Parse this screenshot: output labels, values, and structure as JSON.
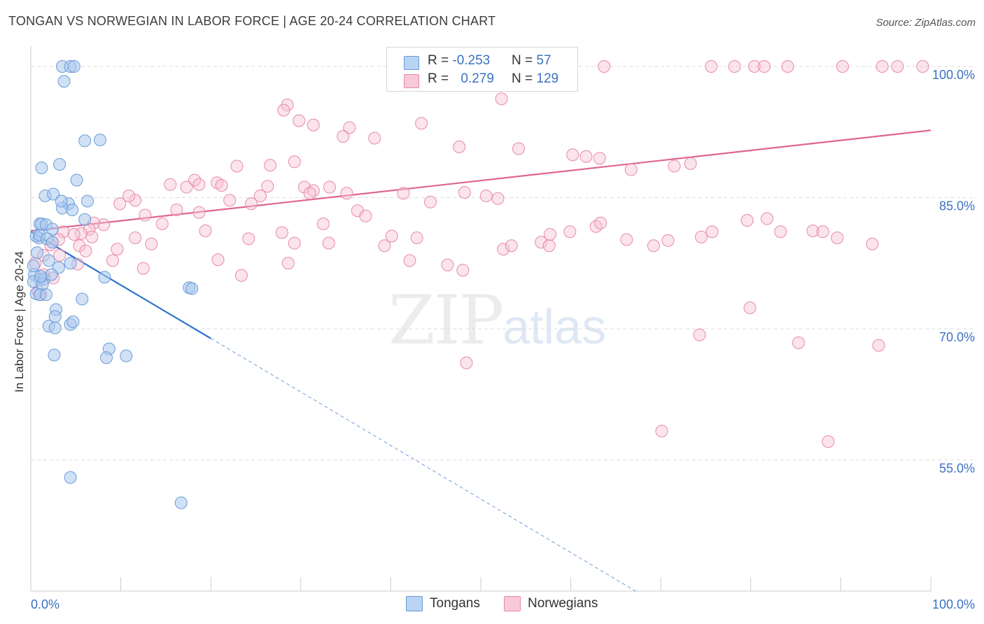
{
  "header": {
    "title": "TONGAN VS NORWEGIAN IN LABOR FORCE | AGE 20-24 CORRELATION CHART",
    "source": "Source: ZipAtlas.com"
  },
  "legend_box": {
    "rows": [
      {
        "r_label": "R = ",
        "r_value": "-0.253",
        "n_label": "N = ",
        "n_value": "57"
      },
      {
        "r_label": "R = ",
        "r_value": "0.279",
        "n_label": "N = ",
        "n_value": "129"
      }
    ]
  },
  "bottom_legend": {
    "tongans": "Tongans",
    "norwegians": "Norwegians"
  },
  "watermark": {
    "zip": "ZIP",
    "atlas": "atlas"
  },
  "colors": {
    "tongan_fill": "#a9c8ef",
    "tongan_stroke": "#6a9bd8",
    "tongan_line": "#2f72d0",
    "norwegian_fill": "#f6c3d3",
    "norwegian_stroke": "#e88aa8",
    "norwegian_line": "#e06592",
    "grid": "#dddddd",
    "tick_label": "#3a72c4"
  },
  "chart_data": {
    "type": "scatter",
    "title": "TONGAN VS NORWEGIAN IN LABOR FORCE | AGE 20-24 CORRELATION CHART",
    "xlabel": "",
    "ylabel": "In Labor Force | Age 20-24",
    "xlim": [
      0,
      100
    ],
    "ylim": [
      40,
      102
    ],
    "x_tick_labels": [
      "0.0%",
      "100.0%"
    ],
    "y_ticks": [
      55,
      70,
      85,
      100
    ],
    "y_tick_labels": [
      "55.0%",
      "70.0%",
      "85.0%",
      "100.0%"
    ],
    "grid": true,
    "series": [
      {
        "name": "Tongans",
        "r": -0.253,
        "n": 57,
        "trend": {
          "x0": 0,
          "y0": 81.1,
          "x1": 20,
          "y1": 68.9,
          "dashed_to_x": 67.2,
          "dashed_to_y": 40
        },
        "points": [
          [
            3.5,
            100
          ],
          [
            4.4,
            100
          ],
          [
            4.8,
            100
          ],
          [
            3.7,
            98.3
          ],
          [
            6,
            91.5
          ],
          [
            7.7,
            91.6
          ],
          [
            3.2,
            88.8
          ],
          [
            1.2,
            88.4
          ],
          [
            5.1,
            87
          ],
          [
            1.6,
            85.2
          ],
          [
            2.5,
            85.4
          ],
          [
            4.2,
            84.3
          ],
          [
            6.3,
            84.6
          ],
          [
            3.5,
            83.8
          ],
          [
            4.6,
            83.6
          ],
          [
            6,
            82.5
          ],
          [
            1,
            82
          ],
          [
            1.2,
            82
          ],
          [
            1.7,
            81.9
          ],
          [
            2.4,
            81.4
          ],
          [
            0.6,
            80.6
          ],
          [
            0.9,
            80.4
          ],
          [
            1,
            80.7
          ],
          [
            1.8,
            80.3
          ],
          [
            0.7,
            78.7
          ],
          [
            2,
            77.8
          ],
          [
            3.1,
            77
          ],
          [
            4.4,
            77.5
          ],
          [
            0.4,
            76.2
          ],
          [
            1,
            75.6
          ],
          [
            1.5,
            75.7
          ],
          [
            2.3,
            76.2
          ],
          [
            8.2,
            75.9
          ],
          [
            0.3,
            75.4
          ],
          [
            1.3,
            75.1
          ],
          [
            0.6,
            74
          ],
          [
            1,
            73.9
          ],
          [
            1.7,
            73.9
          ],
          [
            5.7,
            73.4
          ],
          [
            17.6,
            74.7
          ],
          [
            17.9,
            74.6
          ],
          [
            2.8,
            72.2
          ],
          [
            2.7,
            71.4
          ],
          [
            2,
            70.3
          ],
          [
            2.7,
            70.1
          ],
          [
            4.4,
            70.5
          ],
          [
            4.7,
            70.8
          ],
          [
            8.7,
            67.7
          ],
          [
            2.6,
            67
          ],
          [
            8.4,
            66.7
          ],
          [
            10.6,
            66.9
          ],
          [
            4.4,
            53
          ],
          [
            16.7,
            50.1
          ],
          [
            0.3,
            77.2
          ],
          [
            2.4,
            79.9
          ],
          [
            1.1,
            76
          ],
          [
            3.4,
            84.6
          ]
        ]
      },
      {
        "name": "Norwegians",
        "r": 0.279,
        "n": 129,
        "trend": {
          "x0": 0,
          "y0": 81.2,
          "x1": 100,
          "y1": 92.7
        },
        "points": [
          [
            47.5,
            100
          ],
          [
            50.7,
            100
          ],
          [
            57.2,
            100
          ],
          [
            59.4,
            100
          ],
          [
            63.7,
            100
          ],
          [
            75.6,
            100
          ],
          [
            78.2,
            100
          ],
          [
            80.4,
            100
          ],
          [
            81.5,
            100
          ],
          [
            84.1,
            100
          ],
          [
            90.2,
            100
          ],
          [
            94.6,
            100
          ],
          [
            96.3,
            100
          ],
          [
            99.1,
            100
          ],
          [
            52.3,
            96.3
          ],
          [
            28.5,
            95.6
          ],
          [
            28.1,
            95
          ],
          [
            29.8,
            93.8
          ],
          [
            31.4,
            93.3
          ],
          [
            35.4,
            93
          ],
          [
            34.7,
            92
          ],
          [
            43.4,
            93.5
          ],
          [
            38.2,
            91.8
          ],
          [
            47.6,
            90.8
          ],
          [
            54.2,
            90.6
          ],
          [
            60.2,
            89.9
          ],
          [
            61.7,
            89.7
          ],
          [
            63.2,
            89.5
          ],
          [
            73.3,
            88.9
          ],
          [
            71.5,
            88.6
          ],
          [
            66.7,
            88.2
          ],
          [
            29.3,
            89.1
          ],
          [
            26.6,
            88.7
          ],
          [
            22.9,
            88.6
          ],
          [
            18.2,
            87
          ],
          [
            15.5,
            86.5
          ],
          [
            17.3,
            86.2
          ],
          [
            18.7,
            86.5
          ],
          [
            20.7,
            86.7
          ],
          [
            21.2,
            86.4
          ],
          [
            26.3,
            86.3
          ],
          [
            30.4,
            86.2
          ],
          [
            31.4,
            85.8
          ],
          [
            31,
            85.5
          ],
          [
            25.5,
            85.2
          ],
          [
            24.5,
            84.3
          ],
          [
            22.1,
            84.7
          ],
          [
            33.2,
            86.2
          ],
          [
            35.1,
            85.5
          ],
          [
            41.4,
            85.5
          ],
          [
            48.2,
            85.6
          ],
          [
            50.6,
            85.2
          ],
          [
            51.9,
            84.9
          ],
          [
            44.4,
            84.5
          ],
          [
            36.3,
            83.5
          ],
          [
            37.2,
            82.9
          ],
          [
            32.5,
            82
          ],
          [
            27.9,
            81
          ],
          [
            24.2,
            80.3
          ],
          [
            19.4,
            81.2
          ],
          [
            14.6,
            82
          ],
          [
            16.2,
            83.6
          ],
          [
            18.7,
            83.3
          ],
          [
            12.7,
            83
          ],
          [
            11.6,
            84.7
          ],
          [
            10.9,
            85.2
          ],
          [
            9.9,
            84.3
          ],
          [
            8.1,
            81.9
          ],
          [
            7,
            82.1
          ],
          [
            6.5,
            81.4
          ],
          [
            5.6,
            80.9
          ],
          [
            4.8,
            80.8
          ],
          [
            3.6,
            81.1
          ],
          [
            3.1,
            80.2
          ],
          [
            2.2,
            79.6
          ],
          [
            1.4,
            78.4
          ],
          [
            3.2,
            78.4
          ],
          [
            5.2,
            77.4
          ],
          [
            5.4,
            79.5
          ],
          [
            6.1,
            78.9
          ],
          [
            6.8,
            80.5
          ],
          [
            11.6,
            80.4
          ],
          [
            13.4,
            79.7
          ],
          [
            9.6,
            79.1
          ],
          [
            9.1,
            77.8
          ],
          [
            12.5,
            76.9
          ],
          [
            20.8,
            77.9
          ],
          [
            23.4,
            76.1
          ],
          [
            28.6,
            77.5
          ],
          [
            29.3,
            79.8
          ],
          [
            33.1,
            79.8
          ],
          [
            39.3,
            79.5
          ],
          [
            40.1,
            80.6
          ],
          [
            42.9,
            80.4
          ],
          [
            42.1,
            77.8
          ],
          [
            46.3,
            77.3
          ],
          [
            48,
            76.7
          ],
          [
            52.5,
            79.1
          ],
          [
            53.4,
            79.5
          ],
          [
            56.7,
            79.9
          ],
          [
            57.6,
            79.5
          ],
          [
            57.7,
            80.8
          ],
          [
            59.9,
            81.1
          ],
          [
            62.8,
            81.7
          ],
          [
            63.3,
            82.1
          ],
          [
            66.2,
            80.2
          ],
          [
            69.2,
            79.5
          ],
          [
            70.8,
            80.1
          ],
          [
            74.5,
            80.5
          ],
          [
            75.7,
            81.1
          ],
          [
            79.6,
            82.4
          ],
          [
            81.8,
            82.6
          ],
          [
            83.3,
            81.1
          ],
          [
            86.9,
            81.2
          ],
          [
            88,
            81.1
          ],
          [
            89.6,
            80.4
          ],
          [
            93.5,
            79.7
          ],
          [
            79.9,
            72.4
          ],
          [
            74.3,
            69.3
          ],
          [
            85.3,
            68.4
          ],
          [
            94.2,
            68.1
          ],
          [
            48.4,
            66.1
          ],
          [
            70.1,
            58.3
          ],
          [
            88.6,
            57.1
          ],
          [
            0.8,
            74.3
          ],
          [
            1.4,
            76.2
          ],
          [
            0.5,
            77.5
          ],
          [
            1.1,
            73.9
          ],
          [
            2.5,
            75.8
          ]
        ]
      }
    ]
  }
}
